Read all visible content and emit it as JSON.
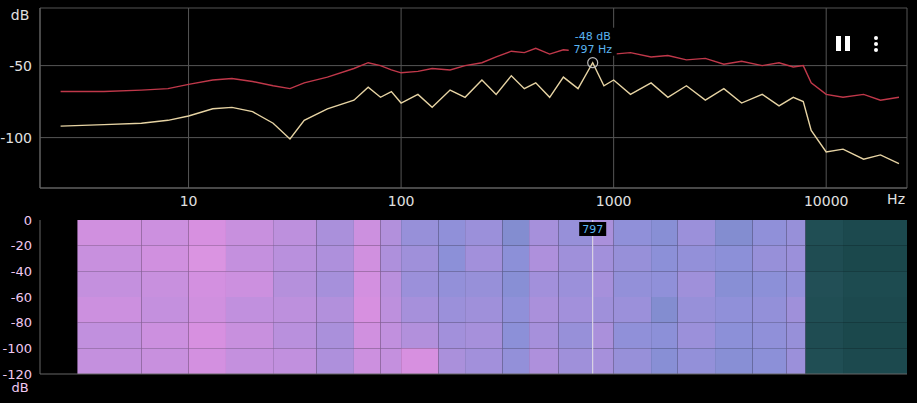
{
  "chart_data": [
    {
      "type": "line",
      "y_label": "dB",
      "x_label": "Hz",
      "log": "x",
      "grid": true,
      "xlim": [
        2,
        24000
      ],
      "xticks": [
        10,
        100,
        1000,
        10000
      ],
      "ylim": [
        -135,
        -10
      ],
      "yticks": [
        -100,
        -50
      ],
      "x": [
        2.5,
        4,
        6,
        8,
        10,
        13,
        16,
        20,
        25,
        30,
        35,
        45,
        60,
        70,
        80,
        90,
        100,
        120,
        140,
        170,
        200,
        240,
        280,
        330,
        380,
        430,
        500,
        580,
        680,
        797,
        900,
        1000,
        1200,
        1500,
        1800,
        2200,
        2700,
        3300,
        4000,
        5000,
        6000,
        7000,
        7800,
        8500,
        10000,
        12000,
        15000,
        18000,
        22000
      ],
      "series": [
        {
          "color": "#c0384a",
          "values": [
            -68,
            -68,
            -67,
            -66,
            -63,
            -60,
            -59,
            -61,
            -64,
            -66,
            -62,
            -58,
            -52,
            -48,
            -50,
            -53,
            -55,
            -54,
            -52,
            -53,
            -50,
            -48,
            -44,
            -40,
            -41,
            -38,
            -42,
            -39,
            -40,
            -35,
            -39,
            -42,
            -41,
            -44,
            -43,
            -46,
            -45,
            -49,
            -47,
            -50,
            -48,
            -51,
            -50,
            -62,
            -70,
            -72,
            -70,
            -74,
            -72
          ]
        },
        {
          "color": "#e6d3a3",
          "values": [
            -92,
            -91,
            -90,
            -88,
            -85,
            -80,
            -79,
            -82,
            -90,
            -101,
            -88,
            -80,
            -74,
            -65,
            -72,
            -68,
            -76,
            -70,
            -79,
            -67,
            -72,
            -60,
            -70,
            -57,
            -66,
            -62,
            -72,
            -58,
            -66,
            -48,
            -64,
            -60,
            -70,
            -62,
            -72,
            -64,
            -74,
            -66,
            -76,
            -70,
            -78,
            -72,
            -75,
            -95,
            -110,
            -108,
            -115,
            -112,
            -118
          ]
        }
      ],
      "annotation": {
        "x": 797,
        "y": -48,
        "texts": [
          "-48 dB",
          "797 Hz"
        ]
      }
    },
    {
      "type": "heatmap",
      "y_label": "dB",
      "log": "x",
      "tick_labels": "y",
      "xlim": [
        2,
        24000
      ],
      "ylim": [
        -120,
        0
      ],
      "yticks": [
        0,
        -20,
        -40,
        -60,
        -80,
        -100,
        -120
      ],
      "x_bins": [
        3,
        6,
        10,
        15,
        25,
        40,
        60,
        80,
        100,
        150,
        200,
        300,
        400,
        550,
        797,
        1000,
        1500,
        2000,
        3000,
        4500,
        6500,
        8000,
        12000,
        24000
      ],
      "y_bins": [
        0,
        -20,
        -40,
        -60,
        -80,
        -100,
        -120
      ],
      "cells": [
        [
          -52,
          -53,
          -50,
          -54,
          -57,
          -62,
          -53,
          -60,
          -67,
          -69,
          -66,
          -72,
          -63,
          -67,
          -62,
          -69,
          -71,
          -66,
          -72,
          -69,
          -67,
          -107,
          -110
        ],
        [
          -54,
          -52,
          -49,
          -55,
          -58,
          -61,
          -52,
          -61,
          -65,
          -70,
          -64,
          -70,
          -61,
          -65,
          -64,
          -67,
          -70,
          -68,
          -70,
          -67,
          -66,
          -108,
          -111
        ],
        [
          -55,
          -54,
          -51,
          -53,
          -59,
          -63,
          -51,
          -58,
          -66,
          -68,
          -67,
          -71,
          -64,
          -66,
          -63,
          -68,
          -69,
          -65,
          -71,
          -70,
          -68,
          -106,
          -109
        ],
        [
          -53,
          -55,
          -52,
          -56,
          -57,
          -60,
          -50,
          -57,
          -63,
          -66,
          -65,
          -69,
          -62,
          -64,
          -65,
          -66,
          -72,
          -67,
          -69,
          -68,
          -65,
          -107,
          -110
        ],
        [
          -56,
          -53,
          -50,
          -54,
          -58,
          -62,
          -52,
          -56,
          -60,
          -64,
          -63,
          -70,
          -63,
          -67,
          -62,
          -69,
          -70,
          -66,
          -70,
          -69,
          -67,
          -108,
          -111
        ],
        [
          -55,
          -54,
          -51,
          -55,
          -56,
          -61,
          -53,
          -55,
          -50,
          -62,
          -64,
          -68,
          -61,
          -65,
          -63,
          -67,
          -71,
          -68,
          -71,
          -70,
          -66,
          -107,
          -110
        ]
      ],
      "zlim": [
        -120,
        -30
      ],
      "cursor": 797
    }
  ]
}
